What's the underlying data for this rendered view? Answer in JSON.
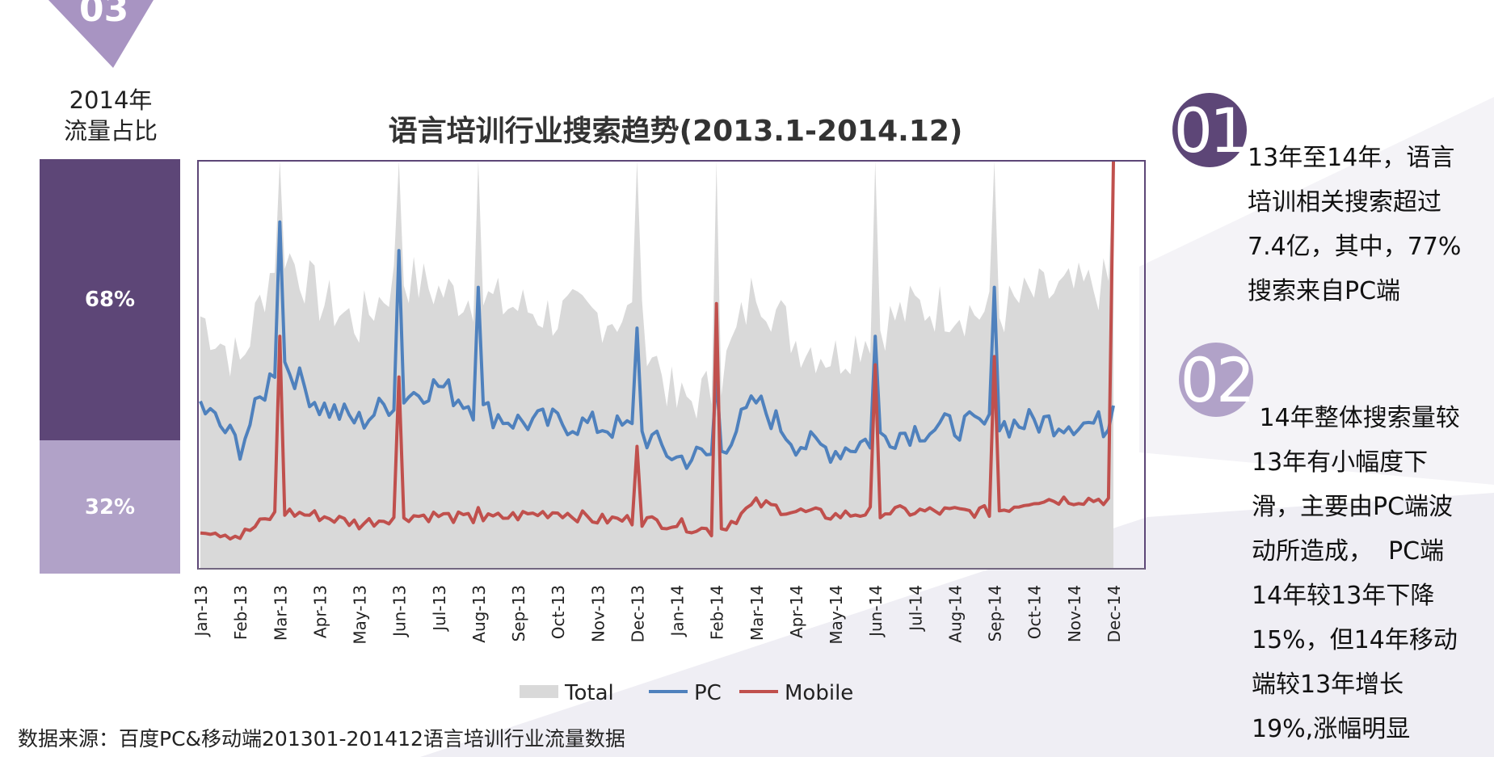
{
  "share_panel": {
    "year_title": "2014年",
    "subtitle": "流量占比",
    "pc_percent": "68%",
    "pc_share": 68,
    "mobile_percent": "32%",
    "mobile_share": 32,
    "pc_color": "#5d4677",
    "mobile_color": "#b1a2c8"
  },
  "notes": [
    {
      "number": "01",
      "lines": [
        "13年至14年，语言",
        "培训相关搜索超过",
        "7.4亿，其中，77%",
        "搜索来自PC端"
      ]
    },
    {
      "number": "02",
      "lines": [
        " 14年整体搜索量较",
        "13年有小幅度下",
        "滑，主要由PC端波",
        "动所造成，  PC端",
        "14年较13年下降",
        "15%，但14年移动",
        "端较13年增长",
        "19%,涨幅明显"
      ]
    }
  ],
  "source": "数据来源：百度PC&移动端201301-201412语言培训行业流量数据",
  "chart_data": {
    "type": "area",
    "title": "语言培训行业搜索趋势(2013.1-2014.12)",
    "categories": [
      "Jan-13",
      "Feb-13",
      "Mar-13",
      "Apr-13",
      "May-13",
      "Jun-13",
      "Jul-13",
      "Aug-13",
      "Sep-13",
      "Oct-13",
      "Nov-13",
      "Dec-13",
      "Jan-14",
      "Feb-14",
      "Mar-14",
      "Apr-14",
      "May-14",
      "Jun-14",
      "Jul-14",
      "Aug-14",
      "Sep-14",
      "Oct-14",
      "Nov-14",
      "Dec-14"
    ],
    "legend": [
      {
        "name": "Total",
        "color": "#d9d9d9",
        "style": "area"
      },
      {
        "name": "PC",
        "color": "#4f81bd",
        "style": "line"
      },
      {
        "name": "Mobile",
        "color": "#c0504d",
        "style": "line"
      }
    ],
    "legend_position": "bottom",
    "ylim": [
      0,
      100
    ],
    "y_axis_labels_shown": false,
    "grid": false,
    "series": [
      {
        "name": "Total",
        "values": [
          62,
          50,
          80,
          66,
          60,
          72,
          68,
          66,
          64,
          62,
          62,
          62,
          40,
          44,
          70,
          56,
          52,
          59,
          64,
          64,
          62,
          67,
          68,
          70
        ]
      },
      {
        "name": "PC",
        "values": [
          40,
          30,
          52,
          40,
          36,
          42,
          45,
          39,
          36,
          36,
          35,
          34,
          27,
          28,
          41,
          31,
          29,
          32,
          34,
          35,
          35,
          36,
          36,
          35
        ]
      },
      {
        "name": "Mobile",
        "values": [
          10,
          8,
          14,
          13,
          11,
          13,
          13,
          12,
          13,
          14,
          12,
          12,
          11,
          9,
          16,
          14,
          13,
          14,
          14,
          14,
          14,
          17,
          17,
          17
        ]
      }
    ],
    "spikes": [
      {
        "month_index": 2,
        "total": 100,
        "pc": 85,
        "mobile": 57
      },
      {
        "month_index": 5,
        "total": 100,
        "pc": 78,
        "mobile": 47
      },
      {
        "month_index": 7,
        "total": 100,
        "pc": 69,
        "mobile": 15
      },
      {
        "month_index": 11,
        "total": 100,
        "pc": 59,
        "mobile": 30
      },
      {
        "month_index": 13,
        "total": 100,
        "pc": 47,
        "mobile": 65
      },
      {
        "month_index": 17,
        "total": 100,
        "pc": 57,
        "mobile": 50
      },
      {
        "month_index": 20,
        "total": 100,
        "pc": 69,
        "mobile": 52
      },
      {
        "month_index": 23,
        "total": 100,
        "pc": 40,
        "mobile": 100
      }
    ]
  }
}
